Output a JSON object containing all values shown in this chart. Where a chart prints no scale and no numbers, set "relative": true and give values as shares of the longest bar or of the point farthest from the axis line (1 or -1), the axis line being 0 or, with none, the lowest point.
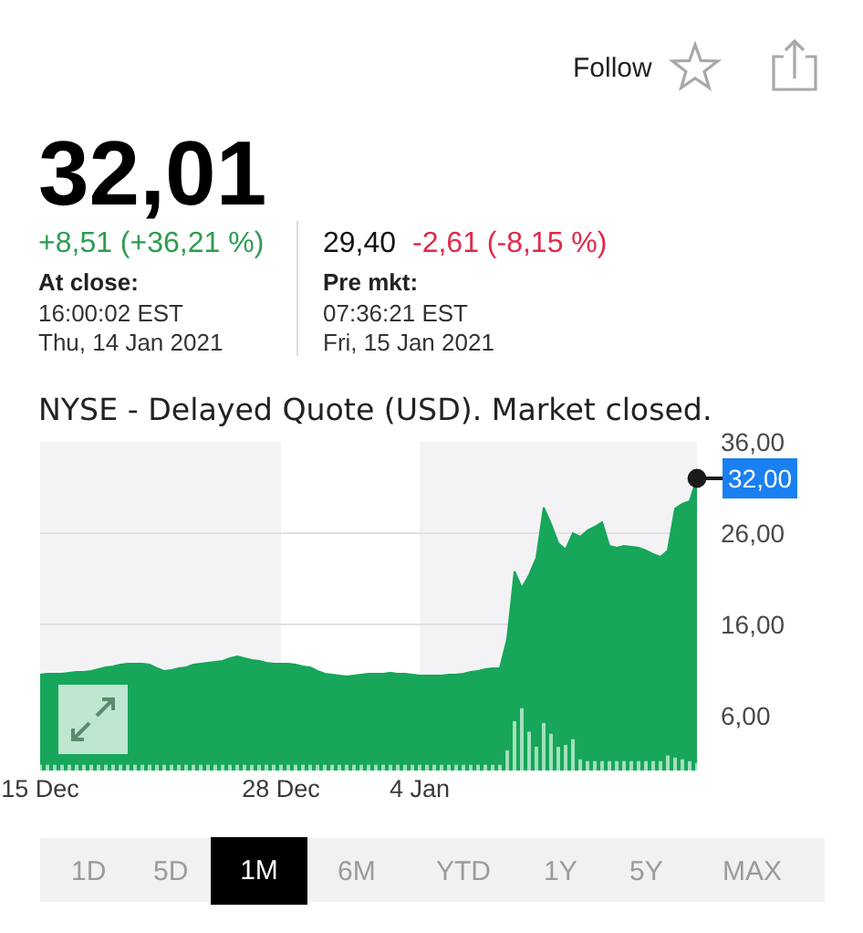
{
  "chart_data": [
    {
      "type": "area",
      "color": "#17a65a",
      "categories": [
        "15 Dec",
        null,
        null,
        null,
        null,
        null,
        null,
        null,
        null,
        null,
        null,
        null,
        null,
        null,
        null,
        null,
        null,
        null,
        null,
        null,
        null,
        null,
        null,
        null,
        null,
        null,
        null,
        null,
        null,
        null,
        null,
        null,
        null,
        "28 Dec",
        null,
        null,
        null,
        null,
        null,
        null,
        null,
        null,
        null,
        null,
        null,
        null,
        null,
        null,
        null,
        null,
        null,
        null,
        "4 Jan",
        null,
        null,
        null,
        null,
        null,
        null,
        null,
        null,
        null,
        null,
        null,
        null,
        null,
        null,
        null,
        null,
        null,
        null,
        null,
        null,
        null,
        null,
        null,
        null,
        null,
        null,
        null,
        null,
        null,
        null,
        null,
        null,
        null,
        null,
        null,
        null,
        null,
        null
      ],
      "values": [
        10.5,
        10.6,
        10.6,
        10.6,
        10.7,
        10.8,
        10.8,
        10.9,
        11.1,
        11.3,
        11.4,
        11.6,
        11.7,
        11.7,
        11.7,
        11.6,
        11.2,
        10.9,
        11.0,
        11.2,
        11.3,
        11.6,
        11.7,
        11.8,
        11.9,
        12.0,
        12.3,
        12.5,
        12.3,
        12.1,
        12.0,
        11.8,
        11.7,
        11.7,
        11.7,
        11.6,
        11.4,
        11.3,
        10.9,
        10.6,
        10.5,
        10.4,
        10.3,
        10.4,
        10.5,
        10.6,
        10.6,
        10.6,
        10.7,
        10.6,
        10.6,
        10.5,
        10.4,
        10.4,
        10.4,
        10.4,
        10.5,
        10.5,
        10.6,
        10.8,
        10.9,
        11.1,
        11.2,
        11.2,
        14.4,
        21.8,
        20.0,
        21.4,
        23.3,
        28.8,
        27.0,
        24.9,
        24.2,
        26.0,
        25.6,
        26.3,
        26.7,
        27.2,
        24.6,
        24.4,
        24.6,
        24.5,
        24.4,
        24.1,
        23.7,
        23.4,
        24.1,
        28.7,
        29.2,
        29.5,
        32.0
      ],
      "ylim": [
        0,
        36
      ],
      "yticks": [
        {
          "value": 6,
          "label": "6,00"
        },
        {
          "value": 16,
          "label": "16,00"
        },
        {
          "value": 26,
          "label": "26,00"
        },
        {
          "value": 36,
          "label": "36,00"
        }
      ],
      "grid": "y",
      "bands": [
        {
          "axis": "x",
          "from": "28 Dec",
          "to": "4 Jan",
          "color": "#ffffff"
        }
      ],
      "annotations": [
        "Follow",
        "32,01",
        "+8,51 (+36,21 %)",
        "At close:",
        "16:00:02 EST",
        "Thu, 14 Jan 2021",
        "29,40",
        "-2,61 (-8,15 %)",
        "Pre mkt:",
        "07:36:21 EST",
        "Fri, 15 Jan 2021",
        "NYSE - Delayed Quote (USD). Market closed.",
        "1D",
        "5D",
        "1M",
        "6M",
        "YTD",
        "1Y",
        "5Y",
        "MAX",
        "32,00"
      ]
    },
    {
      "type": "bar",
      "color": "#a3dfbd",
      "relative": true,
      "categories": [
        null,
        null,
        null,
        null,
        null,
        null,
        null,
        null,
        null,
        null,
        null,
        null,
        null,
        null,
        null,
        null,
        null,
        null,
        null,
        null,
        null,
        null,
        null,
        null,
        null,
        null,
        null,
        null,
        null,
        null,
        null,
        null,
        null,
        null,
        null,
        null,
        null,
        null,
        null,
        null,
        null,
        null,
        null,
        null,
        null,
        null,
        null,
        null,
        null,
        null,
        null,
        null,
        null,
        null,
        null,
        null,
        null,
        null,
        null,
        null,
        null,
        null,
        null,
        null,
        null,
        null,
        null,
        null,
        null,
        null,
        null,
        null,
        null,
        null,
        null,
        null,
        null,
        null,
        null,
        null,
        null,
        null,
        null,
        null,
        null,
        null,
        null,
        null,
        null,
        null,
        null
      ],
      "values": [
        0.09,
        0.09,
        0.09,
        0.09,
        0.09,
        0.09,
        0.09,
        0.09,
        0.09,
        0.09,
        0.09,
        0.09,
        0.09,
        0.09,
        0.09,
        0.09,
        0.09,
        0.09,
        0.09,
        0.09,
        0.09,
        0.09,
        0.09,
        0.09,
        0.09,
        0.09,
        0.09,
        0.09,
        0.09,
        0.09,
        0.09,
        0.09,
        0.09,
        0.09,
        0.09,
        0.09,
        0.09,
        0.09,
        0.09,
        0.09,
        0.09,
        0.09,
        0.09,
        0.09,
        0.09,
        0.09,
        0.09,
        0.09,
        0.09,
        0.09,
        0.09,
        0.09,
        0.09,
        0.09,
        0.09,
        0.09,
        0.09,
        0.09,
        0.09,
        0.09,
        0.09,
        0.09,
        0.09,
        0.09,
        0.32,
        0.79,
        1,
        0.62,
        0.38,
        0.76,
        0.59,
        0.38,
        0.41,
        0.5,
        0.18,
        0.15,
        0.15,
        0.15,
        0.15,
        0.15,
        0.15,
        0.15,
        0.15,
        0.15,
        0.15,
        0.15,
        0.24,
        0.21,
        0.18,
        0.15,
        0.12
      ]
    }
  ]
}
